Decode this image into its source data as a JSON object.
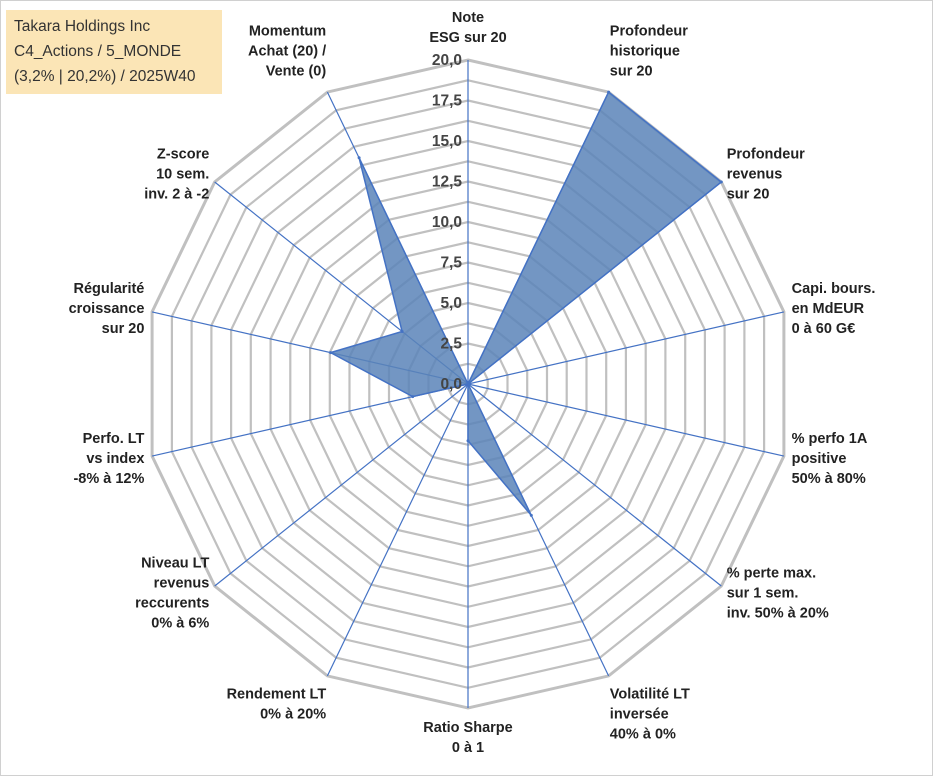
{
  "info_box": {
    "line1": "Takara Holdings Inc",
    "line2": "C4_Actions / 5_MONDE",
    "line3": "(3,2% | 20,2%) / 2025W40"
  },
  "chart_data": {
    "type": "radar",
    "r_min": 0,
    "r_max": 20,
    "ticks": [
      "0,0",
      "2,5",
      "5,0",
      "7,5",
      "10,0",
      "12,5",
      "15,0",
      "17,5",
      "20,0"
    ],
    "axes": [
      {
        "label": [
          "Note",
          "ESG sur 20"
        ],
        "value": 0
      },
      {
        "label": [
          "Profondeur",
          "historique",
          "sur 20"
        ],
        "value": 20
      },
      {
        "label": [
          "Profondeur",
          "revenus",
          "sur 20"
        ],
        "value": 20
      },
      {
        "label": [
          "Capi. bours.",
          "en MdEUR",
          "0 à 60 G€"
        ],
        "value": 0
      },
      {
        "label": [
          "% perfo 1A",
          "positive",
          "50% à 80%"
        ],
        "value": 0
      },
      {
        "label": [
          "% perte max.",
          "sur 1 sem.",
          "inv. 50% à 20%"
        ],
        "value": 0
      },
      {
        "label": [
          "Volatilité LT",
          "inversée",
          "40% à 0%"
        ],
        "value": 9
      },
      {
        "label": [
          "Ratio Sharpe",
          "0 à 1"
        ],
        "value": 3.5
      },
      {
        "label": [
          "Rendement LT",
          "0% à 20%"
        ],
        "value": 0
      },
      {
        "label": [
          "Niveau LT",
          "revenus",
          "reccurents",
          "0% à 6%"
        ],
        "value": 0
      },
      {
        "label": [
          "Perfo. LT",
          "vs index",
          "-8% à 12%"
        ],
        "value": 3.5
      },
      {
        "label": [
          "Régularité",
          "croissance",
          "sur 20"
        ],
        "value": 8.7
      },
      {
        "label": [
          "Z-score",
          "10 sem.",
          "inv. 2 à -2"
        ],
        "value": 5.2
      },
      {
        "label": [
          "Momentum",
          "Achat (20) /",
          "Vente (0)"
        ],
        "value": 15.5
      }
    ],
    "grid": true,
    "legend": "none",
    "colors": {
      "fill": "#5b84b8",
      "stroke": "#4472c4",
      "grid": "#c0c0c0",
      "spoke": "#4472c4"
    }
  }
}
